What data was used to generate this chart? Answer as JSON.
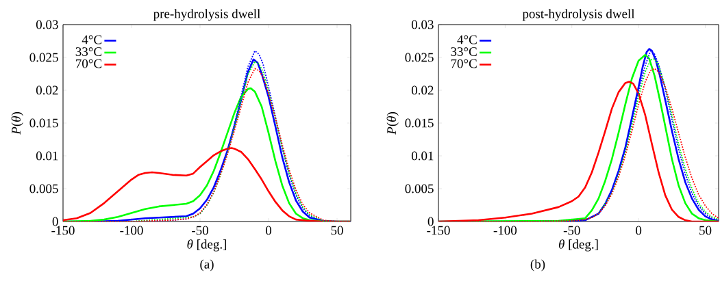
{
  "chart_data": [
    {
      "type": "line",
      "title": "pre-hydrolysis dwell",
      "xlabel": "*θ* [deg.]",
      "ylabel": "*P*(*θ*)",
      "annotations": [
        "(a)"
      ],
      "xlim": [
        -150,
        60
      ],
      "ylim": [
        0,
        0.03
      ],
      "xticks": [
        -150,
        -100,
        -50,
        0,
        50
      ],
      "yticks": [
        0,
        0.005,
        0.01,
        0.015,
        0.02,
        0.025,
        0.03
      ],
      "legend": "top left",
      "series": [
        {
          "name": "4°C",
          "color": "#0000ff",
          "line_style": "solid",
          "x": [
            -150,
            -130,
            -110,
            -100,
            -90,
            -80,
            -70,
            -60,
            -55,
            -50,
            -45,
            -40,
            -35,
            -30,
            -25,
            -20,
            -15,
            -11,
            -8,
            -5,
            0,
            5,
            10,
            15,
            20,
            25,
            30,
            40,
            50,
            60
          ],
          "values": [
            0,
            0,
            0.0001,
            0.0003,
            0.0005,
            0.0006,
            0.0007,
            0.0008,
            0.0012,
            0.002,
            0.0033,
            0.0052,
            0.0078,
            0.0108,
            0.0145,
            0.0185,
            0.0228,
            0.0247,
            0.0242,
            0.0225,
            0.019,
            0.0145,
            0.0098,
            0.006,
            0.0032,
            0.0015,
            0.0006,
            0.0001,
            0,
            0
          ]
        },
        {
          "name": "33°C",
          "color": "#00ff00",
          "line_style": "solid",
          "x": [
            -150,
            -130,
            -120,
            -110,
            -100,
            -90,
            -80,
            -70,
            -60,
            -55,
            -50,
            -45,
            -40,
            -35,
            -30,
            -25,
            -20,
            -15,
            -13,
            -10,
            -5,
            0,
            5,
            10,
            15,
            20,
            25,
            30,
            40,
            60
          ],
          "values": [
            0,
            0.0001,
            0.0003,
            0.0007,
            0.0013,
            0.0019,
            0.0023,
            0.0025,
            0.0027,
            0.0031,
            0.004,
            0.0055,
            0.0077,
            0.0105,
            0.0135,
            0.0165,
            0.019,
            0.0202,
            0.0203,
            0.0198,
            0.0175,
            0.0135,
            0.0092,
            0.0055,
            0.0028,
            0.0012,
            0.0005,
            0.0002,
            0,
            0
          ]
        },
        {
          "name": "70°C",
          "color": "#ff0000",
          "line_style": "solid",
          "x": [
            -150,
            -140,
            -130,
            -120,
            -110,
            -100,
            -95,
            -90,
            -85,
            -80,
            -70,
            -60,
            -55,
            -50,
            -45,
            -40,
            -35,
            -30,
            -27,
            -25,
            -20,
            -15,
            -10,
            -5,
            0,
            5,
            10,
            15,
            20,
            30,
            40,
            60
          ],
          "values": [
            0.0002,
            0.0005,
            0.0013,
            0.0028,
            0.0046,
            0.0064,
            0.0071,
            0.0074,
            0.0075,
            0.0074,
            0.0071,
            0.007,
            0.0073,
            0.0083,
            0.0092,
            0.0101,
            0.0107,
            0.0111,
            0.0112,
            0.0111,
            0.0106,
            0.0095,
            0.008,
            0.0064,
            0.0046,
            0.003,
            0.0017,
            0.0008,
            0.0003,
            0.0001,
            0,
            0
          ]
        },
        {
          "color": "#0000ff",
          "line_style": "dotted",
          "x": [
            -150,
            -100,
            -70,
            -60,
            -55,
            -50,
            -45,
            -40,
            -35,
            -30,
            -25,
            -20,
            -15,
            -10,
            -7,
            -4,
            0,
            5,
            10,
            15,
            20,
            25,
            30,
            40,
            50,
            60
          ],
          "values": [
            0,
            0,
            0.0002,
            0.0004,
            0.0007,
            0.0012,
            0.0025,
            0.0045,
            0.0073,
            0.0106,
            0.0147,
            0.0192,
            0.0236,
            0.026,
            0.0255,
            0.024,
            0.0205,
            0.016,
            0.0112,
            0.0071,
            0.004,
            0.002,
            0.0009,
            0.0001,
            0,
            0
          ]
        },
        {
          "color": "#00ff00",
          "line_style": "dotted",
          "x": [
            -150,
            -100,
            -70,
            -60,
            -55,
            -50,
            -45,
            -40,
            -35,
            -30,
            -25,
            -20,
            -15,
            -10,
            -7,
            -4,
            0,
            5,
            10,
            15,
            20,
            25,
            30,
            40,
            50,
            60
          ],
          "values": [
            0,
            0,
            null,
            null,
            0.0007,
            0.0012,
            0.0025,
            0.0044,
            0.0071,
            0.0104,
            0.0143,
            0.0185,
            0.0224,
            0.0244,
            0.024,
            0.0228,
            0.0198,
            0.0157,
            0.0113,
            0.0074,
            0.0043,
            0.0022,
            0.001,
            0.0001,
            0,
            0
          ]
        },
        {
          "color": "#ff0000",
          "line_style": "dotted",
          "x": [
            -150,
            -100,
            -70,
            -60,
            -55,
            -50,
            -45,
            -40,
            -35,
            -30,
            -25,
            -20,
            -15,
            -10,
            -7,
            -4,
            0,
            5,
            10,
            15,
            20,
            25,
            30,
            40,
            50,
            60
          ],
          "values": [
            0,
            0,
            0.0002,
            0.0004,
            0.0007,
            0.0013,
            0.0026,
            0.0045,
            0.0072,
            0.0102,
            0.0138,
            0.0175,
            0.0212,
            0.0233,
            0.023,
            0.022,
            0.0195,
            0.0158,
            0.0117,
            0.0079,
            0.0048,
            0.0026,
            0.0013,
            0.0002,
            0,
            0
          ]
        }
      ]
    },
    {
      "type": "line",
      "title": "post-hydrolysis dwell",
      "xlabel": "*θ* [deg.]",
      "ylabel": "*P*(*θ*)",
      "annotations": [
        "(b)"
      ],
      "xlim": [
        -150,
        60
      ],
      "ylim": [
        0,
        0.03
      ],
      "xticks": [
        -150,
        -100,
        -50,
        0,
        50
      ],
      "yticks": [
        0,
        0.005,
        0.01,
        0.015,
        0.02,
        0.025,
        0.03
      ],
      "legend": "top left",
      "series": [
        {
          "name": "4°C",
          "color": "#0000ff",
          "line_style": "solid",
          "x": [
            -150,
            -60,
            -40,
            -30,
            -25,
            -20,
            -15,
            -10,
            -5,
            0,
            3,
            6,
            8,
            10,
            13,
            16,
            20,
            25,
            30,
            35,
            40,
            45,
            50,
            55,
            60
          ],
          "values": [
            0,
            0,
            0.0002,
            0.0012,
            0.0027,
            0.0048,
            0.0077,
            0.0112,
            0.0158,
            0.0205,
            0.0235,
            0.0258,
            0.0263,
            0.026,
            0.0245,
            0.0222,
            0.0185,
            0.0138,
            0.0095,
            0.006,
            0.0035,
            0.0018,
            0.0008,
            0.0003,
            0.0001
          ]
        },
        {
          "name": "33°C",
          "color": "#00ff00",
          "line_style": "solid",
          "x": [
            -150,
            -60,
            -40,
            -35,
            -30,
            -25,
            -20,
            -15,
            -10,
            -5,
            0,
            5,
            8,
            12,
            16,
            20,
            25,
            30,
            35,
            40,
            45,
            50,
            60
          ],
          "values": [
            0,
            0.0001,
            0.0005,
            0.0017,
            0.0035,
            0.0062,
            0.0095,
            0.0135,
            0.0178,
            0.0218,
            0.0245,
            0.0254,
            0.0248,
            0.0222,
            0.0185,
            0.0145,
            0.0095,
            0.0055,
            0.0028,
            0.0012,
            0.0005,
            0.0002,
            0
          ]
        },
        {
          "name": "70°C",
          "color": "#ff0000",
          "line_style": "solid",
          "x": [
            -150,
            -120,
            -100,
            -80,
            -60,
            -50,
            -45,
            -40,
            -35,
            -30,
            -25,
            -20,
            -15,
            -10,
            -7,
            -4,
            0,
            5,
            10,
            15,
            20,
            25,
            30,
            35,
            40,
            60
          ],
          "values": [
            0,
            0.0002,
            0.0006,
            0.0012,
            0.0022,
            0.0031,
            0.0038,
            0.0052,
            0.0075,
            0.0105,
            0.0138,
            0.0172,
            0.0197,
            0.0211,
            0.0213,
            0.021,
            0.0195,
            0.0162,
            0.0118,
            0.0075,
            0.004,
            0.0018,
            0.0007,
            0.0002,
            0,
            0
          ]
        },
        {
          "color": "#0000ff",
          "line_style": "dotted",
          "x": [
            -150,
            -80,
            -50,
            -40,
            -35,
            -30,
            -25,
            -20,
            -15,
            -10,
            -5,
            0,
            5,
            9,
            12,
            15,
            20,
            25,
            30,
            35,
            40,
            45,
            50,
            55,
            60
          ],
          "values": [
            0,
            0,
            0.0001,
            0.0003,
            0.0006,
            0.0012,
            0.0025,
            0.0045,
            0.0074,
            0.0108,
            0.0152,
            0.0198,
            0.0238,
            0.026,
            0.0255,
            0.024,
            0.0202,
            0.0155,
            0.011,
            0.0072,
            0.0043,
            0.0024,
            0.0012,
            0.0005,
            0.0002
          ]
        },
        {
          "color": "#00ff00",
          "line_style": "dotted",
          "x": [
            -150,
            -80,
            -50,
            -40,
            -35,
            -30,
            -25,
            -20,
            -15,
            -10,
            -5,
            0,
            5,
            9,
            12,
            15,
            20,
            25,
            30,
            35,
            40,
            45,
            50,
            55,
            60
          ],
          "values": [
            0,
            0,
            0.0001,
            0.0003,
            0.0006,
            0.0012,
            null,
            0.0043,
            0.0071,
            0.0104,
            0.0146,
            0.019,
            0.0228,
            0.0246,
            0.0248,
            0.0238,
            0.0205,
            0.0162,
            0.0118,
            0.008,
            0.005,
            0.0028,
            0.0015,
            0.0007,
            0.0003
          ]
        },
        {
          "color": "#ff0000",
          "line_style": "dotted",
          "x": [
            -150,
            -80,
            -50,
            -40,
            -35,
            -30,
            -25,
            -20,
            -15,
            -10,
            -5,
            0,
            5,
            9,
            12,
            15,
            20,
            25,
            30,
            35,
            40,
            45,
            50,
            55,
            60
          ],
          "values": [
            0,
            0,
            0.0001,
            0.0003,
            0.0006,
            0.0012,
            0.0024,
            0.0042,
            0.0068,
            0.01,
            0.0138,
            0.0178,
            0.0213,
            0.023,
            0.0233,
            0.0228,
            0.0205,
            0.0172,
            0.0135,
            0.0098,
            0.0066,
            0.0041,
            0.0024,
            0.0012,
            0.0005
          ]
        }
      ]
    }
  ]
}
